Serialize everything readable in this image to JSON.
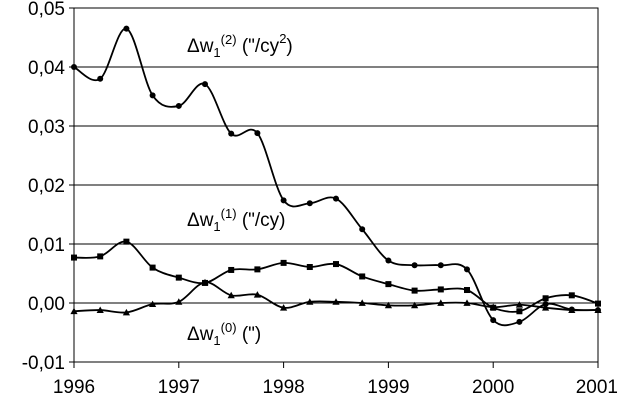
{
  "chart_data": {
    "type": "line",
    "title": "",
    "xlabel": "",
    "ylabel": "",
    "xlim": [
      1996,
      2001
    ],
    "ylim": [
      -0.01,
      0.05
    ],
    "grid": {
      "y": true,
      "x": false
    },
    "legend": "inline labels next to each curve",
    "x_ticks": [
      "1996",
      "1997",
      "1998",
      "1999",
      "2000",
      "2001"
    ],
    "y_ticks": [
      "-0,01",
      "0,00",
      "0,01",
      "0,02",
      "0,03",
      "0,04",
      "0,05"
    ],
    "series": [
      {
        "name": "Δw1(2) (\"/cy2)",
        "label": {
          "base": "Δw",
          "sub": "1",
          "sup": "(2)",
          "unit_pre": " (\"/cy",
          "unit_sup": "2",
          "unit_post": ")"
        },
        "marker": "circle",
        "x": [
          1996.0,
          1996.25,
          1996.5,
          1996.75,
          1997.0,
          1997.25,
          1997.5,
          1997.75,
          1998.0,
          1998.25,
          1998.5,
          1998.75,
          1999.0,
          1999.25,
          1999.5,
          1999.75,
          2000.0,
          2000.25,
          2000.5,
          2000.75,
          2001.0
        ],
        "values": [
          0.04,
          0.038,
          0.0465,
          0.0352,
          0.0334,
          0.0371,
          0.0287,
          0.0288,
          0.0174,
          0.0169,
          0.0177,
          0.0125,
          0.0072,
          0.0064,
          0.0064,
          0.0057,
          -0.0029,
          -0.0032,
          -0.0002,
          -0.0011,
          -0.0012
        ]
      },
      {
        "name": "Δw1(1) (\"/cy)",
        "label": {
          "base": "Δw",
          "sub": "1",
          "sup": "(1)",
          "unit_pre": " (\"/cy)",
          "unit_sup": "",
          "unit_post": ""
        },
        "marker": "square",
        "x": [
          1996.0,
          1996.25,
          1996.5,
          1996.75,
          1997.0,
          1997.25,
          1997.5,
          1997.75,
          1998.0,
          1998.25,
          1998.5,
          1998.75,
          1999.0,
          1999.25,
          1999.5,
          1999.75,
          2000.0,
          2000.25,
          2000.5,
          2000.75,
          2001.0
        ],
        "values": [
          0.0077,
          0.0079,
          0.0104,
          0.006,
          0.0043,
          0.0034,
          0.0056,
          0.0057,
          0.0068,
          0.0061,
          0.0066,
          0.0045,
          0.0032,
          0.0021,
          0.0023,
          0.0022,
          -0.0008,
          -0.0014,
          0.0008,
          0.0013,
          -0.0001
        ]
      },
      {
        "name": "Δw1(0) (\")",
        "label": {
          "base": "Δw",
          "sub": "1",
          "sup": "(0)",
          "unit_pre": " (\")",
          "unit_sup": "",
          "unit_post": ""
        },
        "marker": "triangle",
        "x": [
          1996.0,
          1996.25,
          1996.5,
          1996.75,
          1997.0,
          1997.25,
          1997.5,
          1997.75,
          1998.0,
          1998.25,
          1998.5,
          1998.75,
          1999.0,
          1999.25,
          1999.5,
          1999.75,
          2000.0,
          2000.25,
          2000.5,
          2000.75,
          2001.0
        ],
        "values": [
          -0.0014,
          -0.0012,
          -0.0016,
          -0.0002,
          0.0002,
          0.0035,
          0.0013,
          0.0014,
          -0.0008,
          0.0002,
          0.0002,
          0.0,
          -0.0004,
          -0.0004,
          0.0,
          0.0,
          -0.0007,
          -0.0003,
          -0.0008,
          -0.0012,
          -0.0012
        ]
      }
    ]
  }
}
